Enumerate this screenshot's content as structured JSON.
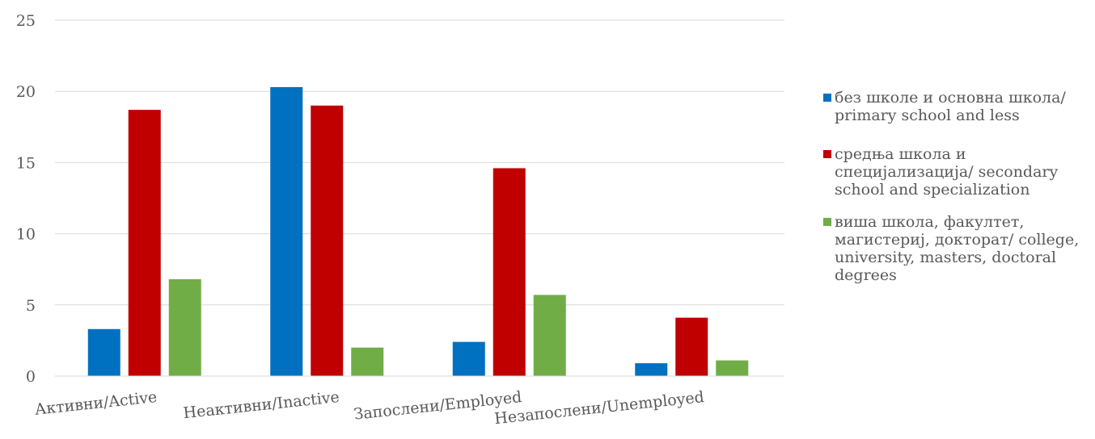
{
  "chart_data": {
    "type": "bar",
    "categories": [
      "Активни/Active",
      "Неактивни/Inactive",
      "Запослени/Employed",
      "Незапослени/Unemployed"
    ],
    "series": [
      {
        "name": "без школе и основна школа/ primary school and less",
        "color": "#0070C0",
        "values": [
          3.3,
          20.3,
          2.4,
          0.9
        ]
      },
      {
        "name": "средња школа и специјализација/ secondary school and specialization",
        "color": "#C00000",
        "values": [
          18.7,
          19.0,
          14.6,
          4.1
        ]
      },
      {
        "name": "виша школа, факултет, магистериј, докторат/ college, university, masters, doctoral degrees",
        "color": "#70AD47",
        "values": [
          6.8,
          2.0,
          5.7,
          1.1
        ]
      }
    ],
    "ylim": [
      0,
      25
    ],
    "yticks": [
      0,
      5,
      10,
      15,
      20,
      25
    ],
    "grid": true,
    "legend": "right"
  }
}
